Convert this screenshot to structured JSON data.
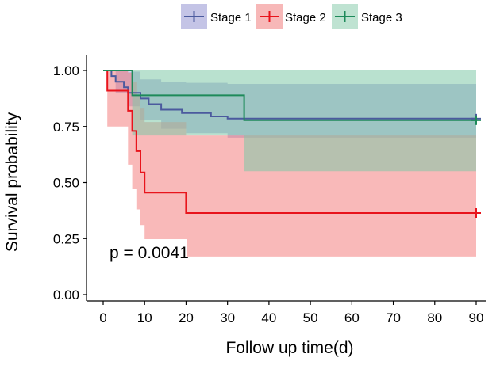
{
  "chart_data": {
    "type": "line",
    "subtype": "kaplan-meier",
    "xlabel": "Follow up time(d)",
    "ylabel": "Survival probability",
    "xlim": [
      0,
      90
    ],
    "ylim": [
      0,
      1
    ],
    "xticks": [
      "0",
      "10",
      "20",
      "30",
      "40",
      "50",
      "60",
      "70",
      "80",
      "90"
    ],
    "yticks": [
      "0.00",
      "0.25",
      "0.50",
      "0.75",
      "1.00"
    ],
    "legend_position": "top",
    "grid": false,
    "annotation": "p = 0.0041",
    "series": [
      {
        "name": "Stage 1",
        "color": "#4B5A9E",
        "fill": "#8F8FD0",
        "steps": [
          [
            0,
            1.0
          ],
          [
            2,
            0.975
          ],
          [
            3,
            0.95
          ],
          [
            5,
            0.925
          ],
          [
            6,
            0.9
          ],
          [
            9,
            0.875
          ],
          [
            11,
            0.85
          ],
          [
            14,
            0.825
          ],
          [
            19,
            0.81
          ],
          [
            26,
            0.795
          ],
          [
            30,
            0.785
          ],
          [
            90,
            0.785
          ]
        ],
        "ci_upper": [
          [
            0,
            1.0
          ],
          [
            3,
            1.0
          ],
          [
            6,
            0.995
          ],
          [
            9,
            0.96
          ],
          [
            14,
            0.95
          ],
          [
            20,
            0.945
          ],
          [
            30,
            0.94
          ],
          [
            90,
            0.94
          ]
        ],
        "ci_lower": [
          [
            0,
            1.0
          ],
          [
            3,
            0.9
          ],
          [
            6,
            0.84
          ],
          [
            9,
            0.78
          ],
          [
            14,
            0.74
          ],
          [
            20,
            0.72
          ],
          [
            30,
            0.7
          ],
          [
            90,
            0.69
          ]
        ],
        "censor": [
          [
            90,
            0.785
          ]
        ]
      },
      {
        "name": "Stage 2",
        "color": "#E8141C",
        "fill": "#F48080",
        "steps": [
          [
            0,
            1.0
          ],
          [
            1,
            0.91
          ],
          [
            5,
            0.91
          ],
          [
            6,
            0.82
          ],
          [
            7,
            0.73
          ],
          [
            8,
            0.64
          ],
          [
            9,
            0.545
          ],
          [
            10,
            0.455
          ],
          [
            20,
            0.364
          ],
          [
            90,
            0.364
          ]
        ],
        "ci_upper": [
          [
            0,
            1.0
          ],
          [
            5,
            1.0
          ],
          [
            6,
            0.99
          ],
          [
            7,
            0.95
          ],
          [
            8,
            0.89
          ],
          [
            9,
            0.83
          ],
          [
            10,
            0.77
          ],
          [
            20,
            0.71
          ],
          [
            90,
            0.71
          ]
        ],
        "ci_lower": [
          [
            0,
            1.0
          ],
          [
            1,
            0.75
          ],
          [
            5,
            0.75
          ],
          [
            6,
            0.58
          ],
          [
            7,
            0.47
          ],
          [
            8,
            0.38
          ],
          [
            9,
            0.31
          ],
          [
            10,
            0.23
          ],
          [
            20,
            0.17
          ],
          [
            90,
            0.17
          ]
        ],
        "censor": [
          [
            90,
            0.364
          ]
        ]
      },
      {
        "name": "Stage 3",
        "color": "#1E8A5A",
        "fill": "#80C8A8",
        "steps": [
          [
            0,
            1.0
          ],
          [
            7,
            0.889
          ],
          [
            34,
            0.778
          ],
          [
            90,
            0.778
          ]
        ],
        "ci_upper": [
          [
            0,
            1.0
          ],
          [
            90,
            1.0
          ]
        ],
        "ci_lower": [
          [
            0,
            1.0
          ],
          [
            7,
            0.71
          ],
          [
            34,
            0.55
          ],
          [
            90,
            0.55
          ]
        ],
        "censor": [
          [
            90,
            0.778
          ]
        ]
      }
    ]
  }
}
